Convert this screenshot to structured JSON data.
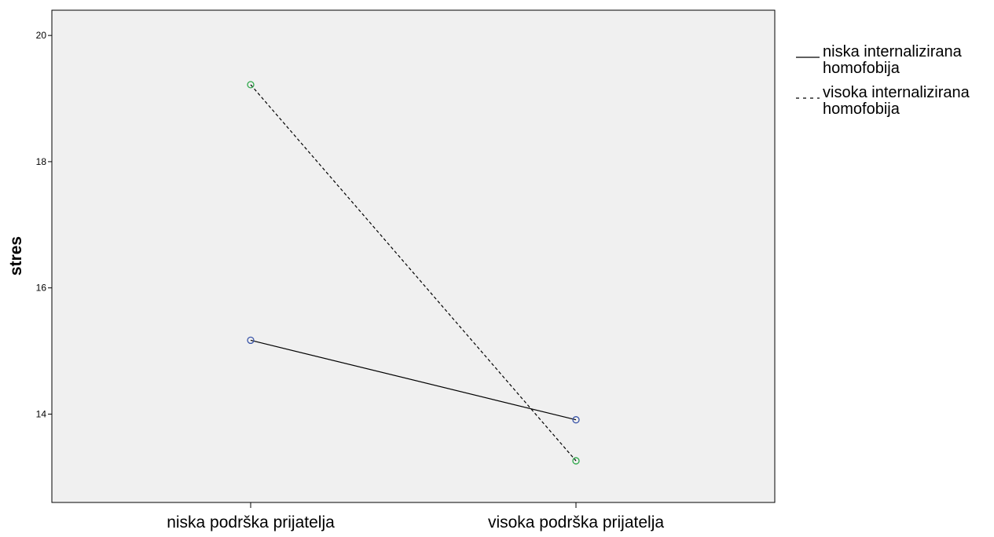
{
  "chart_data": {
    "type": "line",
    "title": "",
    "xlabel": "",
    "ylabel": "stres",
    "categories": [
      "niska podrška prijatelja",
      "visoka podrška prijatelja"
    ],
    "ylim": [
      12.6,
      20.4
    ],
    "yticks": [
      14,
      16,
      18,
      20
    ],
    "grid": false,
    "legend_position": "right",
    "plot_background": "#f0f0f0",
    "series": [
      {
        "name": "niska internalizirana homofobija",
        "name_lines": [
          "niska internalizirana",
          "homofobija"
        ],
        "values": [
          15.17,
          13.91
        ],
        "line_style": "solid",
        "line_color": "#000000",
        "marker_color": "#3a55a8"
      },
      {
        "name": "visoka internalizirana homofobija",
        "name_lines": [
          "visoka internalizirana",
          "homofobija"
        ],
        "values": [
          19.22,
          13.26
        ],
        "line_style": "dashed",
        "line_color": "#000000",
        "marker_color": "#2ea84a"
      }
    ]
  }
}
